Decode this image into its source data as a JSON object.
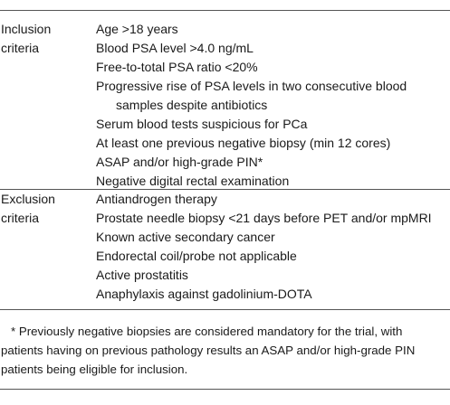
{
  "table": {
    "rows": [
      {
        "header_lines": [
          "Inclusion",
          "criteria"
        ],
        "items": [
          [
            "Age >18 years"
          ],
          [
            "Blood PSA level >4.0 ng/mL"
          ],
          [
            "Free-to-total PSA ratio <20%"
          ],
          [
            "Progressive rise of PSA levels in two consecutive blood",
            "samples despite antibiotics"
          ],
          [
            "Serum blood tests suspicious for PCa"
          ],
          [
            "At least one previous negative biopsy (min 12 cores)"
          ],
          [
            "ASAP and/or high-grade PIN*"
          ],
          [
            "Negative digital rectal examination"
          ]
        ]
      },
      {
        "header_lines": [
          "Exclusion",
          "criteria"
        ],
        "items": [
          [
            "Antiandrogen therapy"
          ],
          [
            "Prostate needle biopsy <21 days before PET and/or mpMRI"
          ],
          [
            "Known active secondary cancer"
          ],
          [
            "Endorectal coil/probe not applicable"
          ],
          [
            "Active prostatitis"
          ],
          [
            "Anaphylaxis against gadolinium-DOTA"
          ]
        ]
      }
    ]
  },
  "footnote": {
    "lines": [
      "* Previously negative biopsies are considered mandatory for the trial, with",
      "patients having on previous pathology results an ASAP and/or high-grade PIN",
      "patients being eligible for inclusion."
    ]
  }
}
